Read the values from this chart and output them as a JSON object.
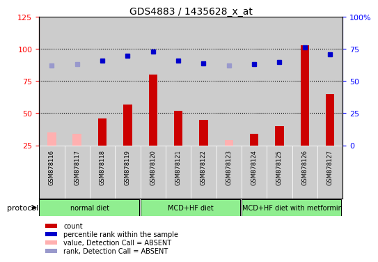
{
  "title": "GDS4883 / 1435628_x_at",
  "samples": [
    "GSM878116",
    "GSM878117",
    "GSM878118",
    "GSM878119",
    "GSM878120",
    "GSM878121",
    "GSM878122",
    "GSM878123",
    "GSM878124",
    "GSM878125",
    "GSM878126",
    "GSM878127"
  ],
  "count_values": [
    35,
    34,
    46,
    57,
    80,
    52,
    45,
    29,
    34,
    40,
    103,
    65
  ],
  "count_absent": [
    true,
    true,
    false,
    false,
    false,
    false,
    false,
    true,
    false,
    false,
    false,
    false
  ],
  "percentile_values": [
    62,
    63,
    66,
    70,
    73,
    66,
    64,
    62,
    63,
    65,
    76,
    71
  ],
  "percentile_absent": [
    true,
    true,
    false,
    false,
    false,
    false,
    false,
    true,
    false,
    false,
    false,
    false
  ],
  "left_ylim": [
    25,
    125
  ],
  "left_yticks": [
    25,
    50,
    75,
    100,
    125
  ],
  "right_ylim": [
    0,
    100
  ],
  "right_yticks": [
    0,
    25,
    50,
    75,
    100
  ],
  "bar_color_present": "#cc0000",
  "bar_color_absent": "#ffb0b0",
  "dot_color_present": "#0000cc",
  "dot_color_absent": "#9999cc",
  "bg_color": "#cccccc",
  "protocol_label": "protocol",
  "group_color": "#90ee90",
  "group_boundaries": [
    [
      0,
      4,
      "normal diet"
    ],
    [
      4,
      8,
      "MCD+HF diet"
    ],
    [
      8,
      12,
      "MCD+HF diet with metformin"
    ]
  ],
  "legend_items": [
    {
      "color": "#cc0000",
      "label": "count"
    },
    {
      "color": "#0000cc",
      "label": "percentile rank within the sample"
    },
    {
      "color": "#ffb0b0",
      "label": "value, Detection Call = ABSENT"
    },
    {
      "color": "#9999cc",
      "label": "rank, Detection Call = ABSENT"
    }
  ],
  "hlines": [
    50,
    75,
    100
  ]
}
